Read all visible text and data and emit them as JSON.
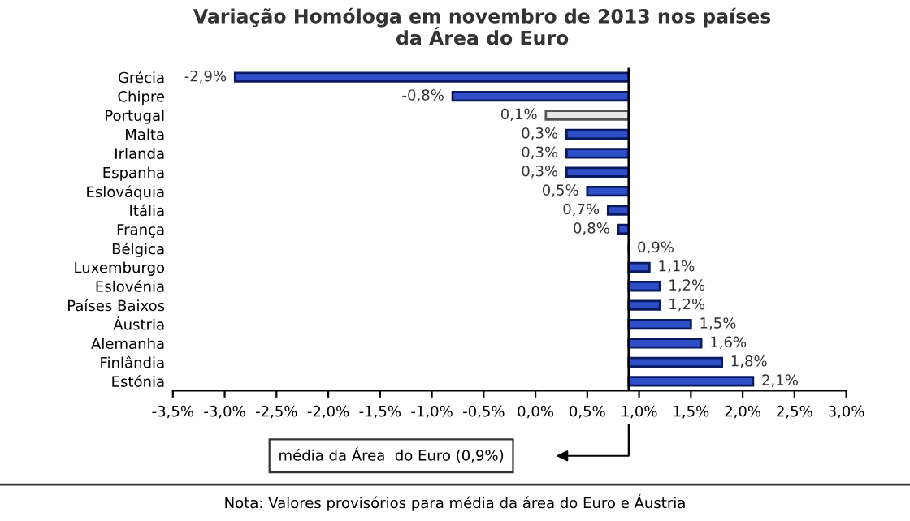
{
  "chart_data": {
    "type": "bar",
    "orientation": "horizontal",
    "title": "Variação Homóloga em novembro de 2013 nos países\nda Área do Euro",
    "categories": [
      "Grécia",
      "Chipre",
      "Portugal",
      "Malta",
      "Irlanda",
      "Espanha",
      "Eslováquia",
      "Itália",
      "França",
      "Bélgica",
      "Luxemburgo",
      "Eslovénia",
      "Países Baixos",
      "Áustria",
      "Alemanha",
      "Finlândia",
      "Estónia"
    ],
    "base": [
      0.9,
      0.9,
      0.9,
      0.9,
      0.9,
      0.9,
      0.9,
      0.9,
      0.9,
      0.9,
      0.9,
      0.9,
      0.9,
      0.9,
      0.9,
      0.9,
      0.9
    ],
    "values": [
      -3.8,
      -1.7,
      -0.8,
      -0.6,
      -0.6,
      -0.6,
      -0.4,
      -0.2,
      -0.1,
      0.0,
      0.2,
      0.3,
      0.3,
      0.6,
      0.7,
      0.9,
      1.2
    ],
    "value_labels": [
      "-2,9%",
      "-0,8%",
      "0,1%",
      "0,3%",
      "0,3%",
      "0,3%",
      "0,5%",
      "0,7%",
      "0,8%",
      "0,9%",
      "1,1%",
      "1,2%",
      "1,2%",
      "1,5%",
      "1,6%",
      "1,8%",
      "2,1%"
    ],
    "colors": [
      "#2f4fc8",
      "#2f4fc8",
      "#e8e8e8",
      "#2f4fc8",
      "#2f4fc8",
      "#2f4fc8",
      "#2f4fc8",
      "#2f4fc8",
      "#2f4fc8",
      "#2f4fc8",
      "#2f4fc8",
      "#2f4fc8",
      "#2f4fc8",
      "#2f4fc8",
      "#2f4fc8",
      "#2f4fc8",
      "#2f4fc8"
    ],
    "xlim": [
      -3.5,
      3.0
    ],
    "xticks": [
      {
        "value": -3.5,
        "label": "-3,5%"
      },
      {
        "value": -3.0,
        "label": "-3,0%"
      },
      {
        "value": -2.5,
        "label": "-2,5%"
      },
      {
        "value": -2.0,
        "label": "-2,0%"
      },
      {
        "value": -1.5,
        "label": "-1,5%"
      },
      {
        "value": -1.0,
        "label": "-1,0%"
      },
      {
        "value": -0.5,
        "label": "-0,5%"
      },
      {
        "value": 0.0,
        "label": "0,0%"
      },
      {
        "value": 0.5,
        "label": "0,5%"
      },
      {
        "value": 1.0,
        "label": "1,0%"
      },
      {
        "value": 1.5,
        "label": "1,5%"
      },
      {
        "value": 2.0,
        "label": "2,0%"
      },
      {
        "value": 2.5,
        "label": "2,5%"
      },
      {
        "value": 3.0,
        "label": "3,0%"
      }
    ],
    "ref_lines": [
      {
        "axis": "x",
        "value": 0.9,
        "label": "média da Área  do Euro (0,9%)",
        "color": "#000000"
      }
    ],
    "annotations": [
      "Nota: Valores provisórios para média da área do Euro e Áustria"
    ],
    "grid": false,
    "legend": false
  }
}
